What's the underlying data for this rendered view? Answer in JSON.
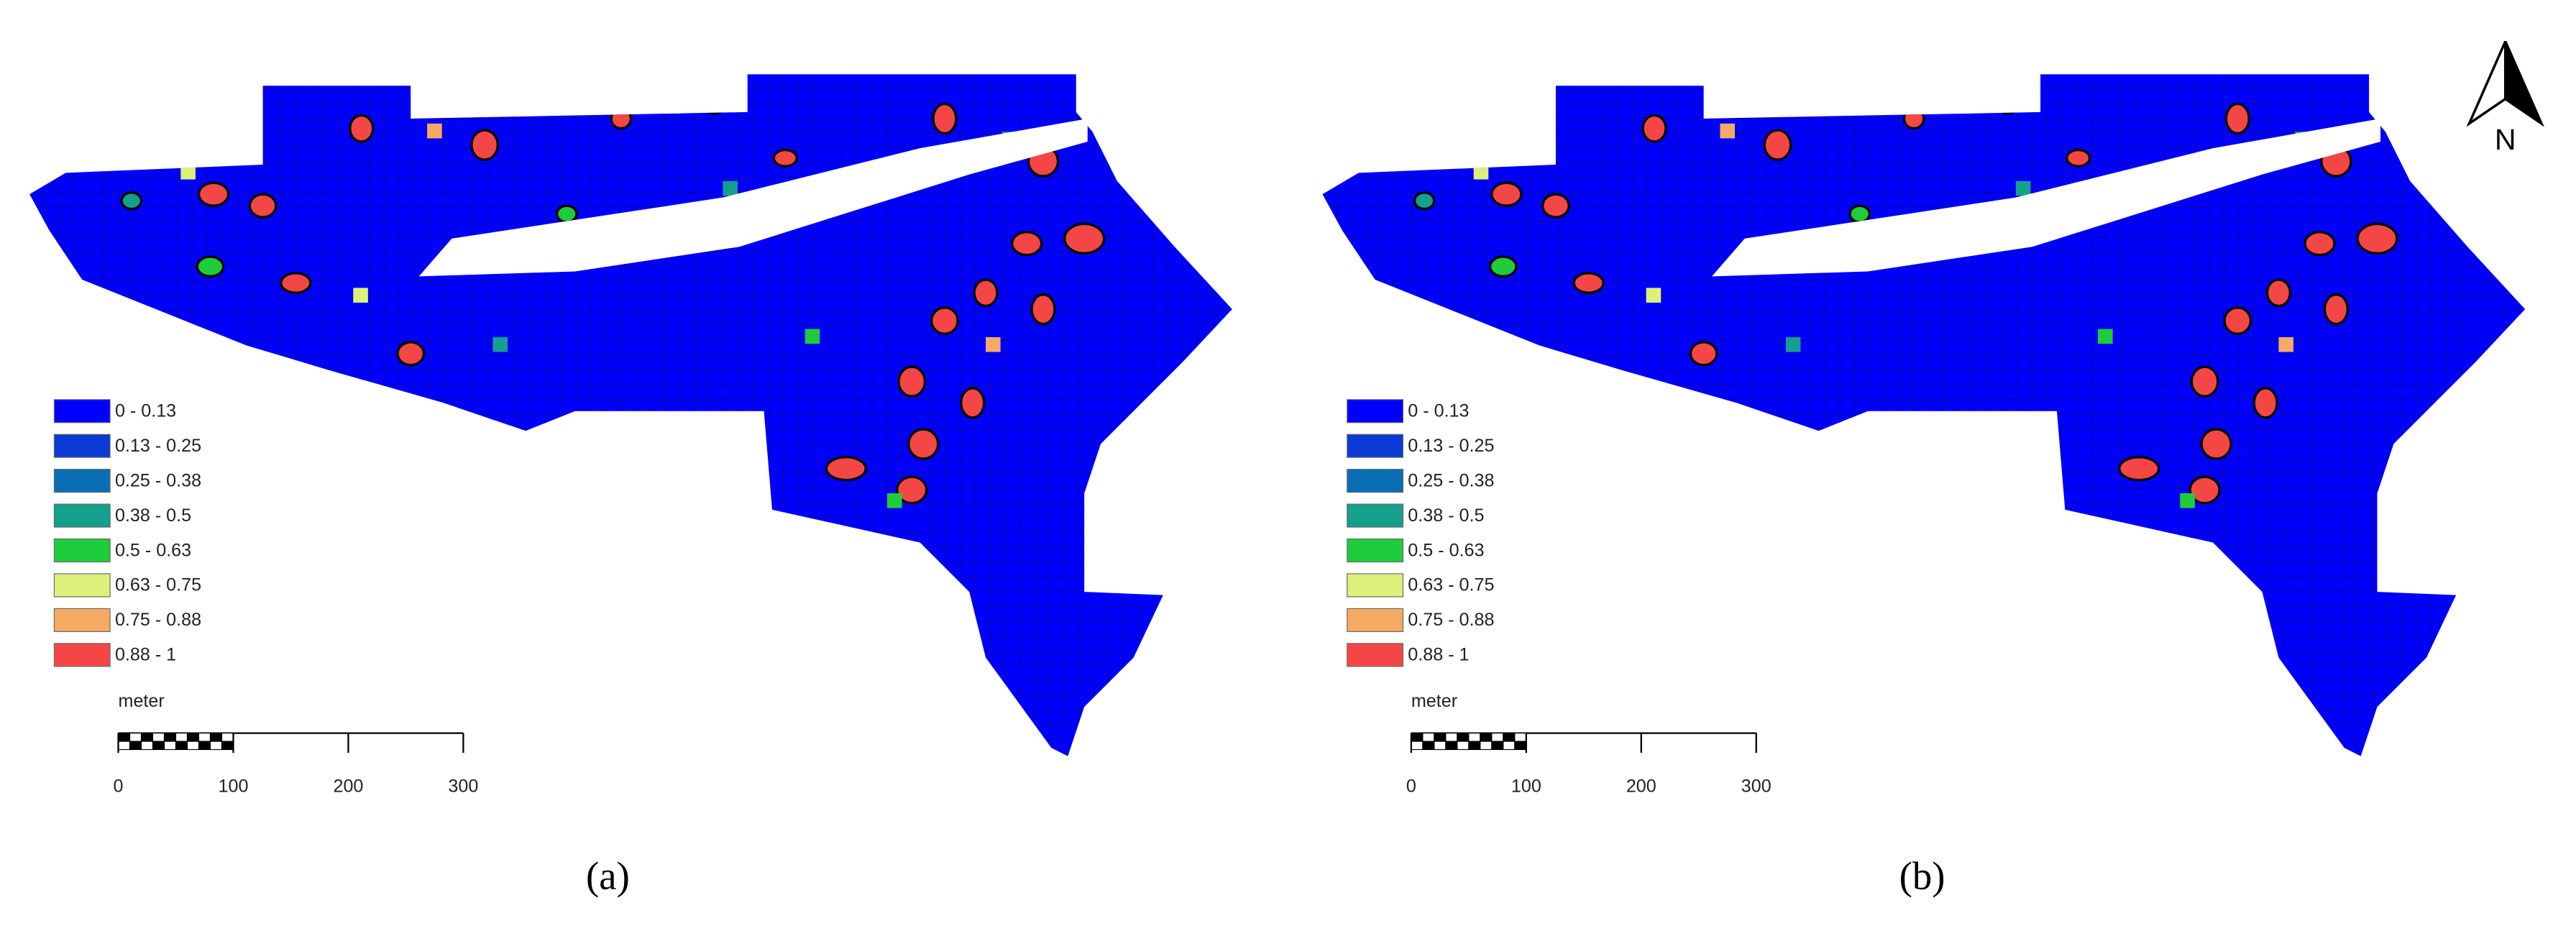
{
  "panels": [
    {
      "label": "(a)"
    },
    {
      "label": "(b)"
    }
  ],
  "legend": [
    {
      "label": "0 - 0.13",
      "color": "#0000ff"
    },
    {
      "label": "0.13 - 0.25",
      "color": "#0a3ad6"
    },
    {
      "label": "0.25 - 0.38",
      "color": "#0a6eb4"
    },
    {
      "label": "0.38 - 0.5",
      "color": "#14a08c"
    },
    {
      "label": "0.5 - 0.63",
      "color": "#1ecc3c"
    },
    {
      "label": "0.63 - 0.75",
      "color": "#ddf07a"
    },
    {
      "label": "0.75 - 0.88",
      "color": "#f5aa64"
    },
    {
      "label": "0.88 - 1",
      "color": "#f54646"
    }
  ],
  "scale_bar": {
    "unit": "meter",
    "ticks": [
      0,
      100,
      200,
      300
    ]
  },
  "north_arrow": "N"
}
